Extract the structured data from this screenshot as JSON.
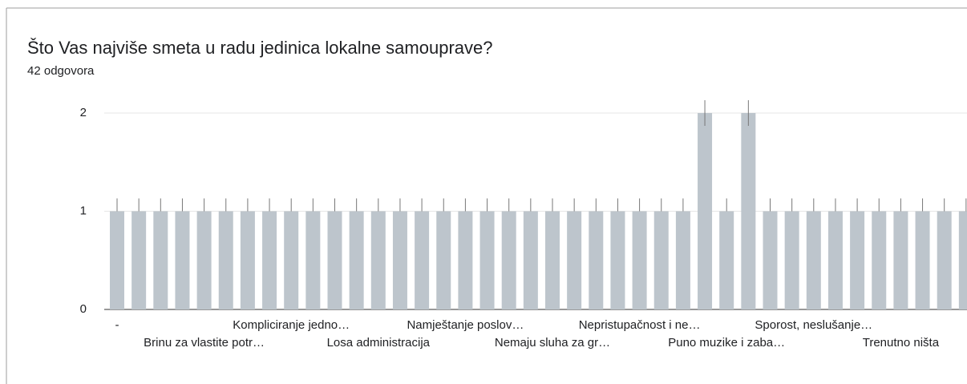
{
  "chart_data": {
    "type": "bar",
    "title": "Što Vas najviše smeta u radu jedinica lokalne samouprave?",
    "subtitle": "42 odgovora",
    "categories": [
      "-",
      null,
      null,
      null,
      "Brinu za vlastite potr…",
      null,
      null,
      null,
      "Kompliciranje jedno…",
      null,
      null,
      null,
      "Losa administracija",
      null,
      null,
      null,
      "Namještanje poslov…",
      null,
      null,
      null,
      "Nemaju sluha za gr…",
      null,
      null,
      null,
      "Nepristupačnost i ne…",
      null,
      null,
      null,
      "Puno muzike i zaba…",
      null,
      null,
      null,
      "Sporost, neslušanje…",
      null,
      null,
      null,
      "Trenutno ništa",
      null,
      null,
      null
    ],
    "values": [
      1,
      1,
      1,
      1,
      1,
      1,
      1,
      1,
      1,
      1,
      1,
      1,
      1,
      1,
      1,
      1,
      1,
      1,
      1,
      1,
      1,
      1,
      1,
      1,
      1,
      1,
      1,
      2,
      1,
      2,
      1,
      1,
      1,
      1,
      1,
      1,
      1,
      1,
      1,
      1
    ],
    "color": "#bdc5cc",
    "ylim": [
      0,
      2
    ],
    "yticks": [
      0,
      1,
      2
    ],
    "grid": true
  }
}
